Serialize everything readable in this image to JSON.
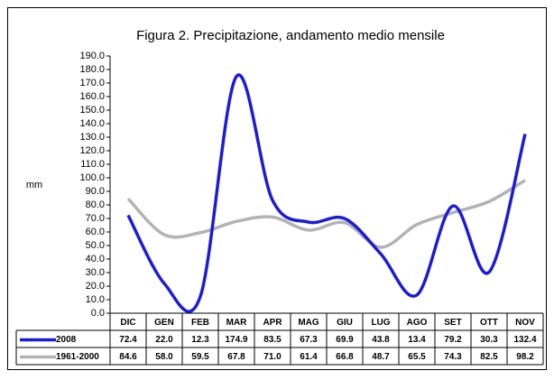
{
  "chart_data": {
    "type": "line",
    "title": "Figura 2. Precipitazione, andamento medio mensile",
    "y_label": "mm",
    "categories": [
      "DIC",
      "GEN",
      "FEB",
      "MAR",
      "APR",
      "MAG",
      "GIU",
      "LUG",
      "AGO",
      "SET",
      "OTT",
      "NOV"
    ],
    "series": [
      {
        "name": "2008",
        "color": "#1c1cd8",
        "values": [
          72.4,
          22.0,
          12.3,
          174.9,
          83.5,
          67.3,
          69.9,
          43.8,
          13.4,
          79.2,
          30.3,
          132.4
        ],
        "value_labels": [
          "72.4",
          "22.0",
          "12.3",
          "174.9",
          "83.5",
          "67.3",
          "69.9",
          "43.8",
          "13.4",
          "79.2",
          "30.3",
          "132.4"
        ]
      },
      {
        "name": "1961-2000",
        "color": "#b3b3b3",
        "values": [
          84.6,
          58.0,
          59.5,
          67.8,
          71.0,
          61.4,
          66.8,
          48.7,
          65.5,
          74.3,
          82.5,
          98.2
        ],
        "value_labels": [
          "84.6",
          "58.0",
          "59.5",
          "67.8",
          "71.0",
          "61.4",
          "66.8",
          "48.7",
          "65.5",
          "74.3",
          "82.5",
          "98.2"
        ]
      }
    ],
    "ylim": [
      0,
      190
    ],
    "yticks": [
      {
        "value": 0,
        "label": "0.0"
      },
      {
        "value": 10,
        "label": "10.0"
      },
      {
        "value": 20,
        "label": "20.0"
      },
      {
        "value": 30,
        "label": "30.0"
      },
      {
        "value": 40,
        "label": "40.0"
      },
      {
        "value": 50,
        "label": "50.0"
      },
      {
        "value": 60,
        "label": "60.0"
      },
      {
        "value": 70,
        "label": "70.0"
      },
      {
        "value": 80,
        "label": "80.0"
      },
      {
        "value": 90,
        "label": "90.0"
      },
      {
        "value": 100,
        "label": "100.0"
      },
      {
        "value": 110,
        "label": "110.0"
      },
      {
        "value": 120,
        "label": "120.0"
      },
      {
        "value": 130,
        "label": "130.0"
      },
      {
        "value": 140,
        "label": "140.0"
      },
      {
        "value": 150,
        "label": "150.0"
      },
      {
        "value": 160,
        "label": "160.0"
      },
      {
        "value": 170,
        "label": "170.0"
      },
      {
        "value": 180,
        "label": "180.0"
      },
      {
        "value": 190,
        "label": "190.0"
      }
    ],
    "grid": false
  }
}
